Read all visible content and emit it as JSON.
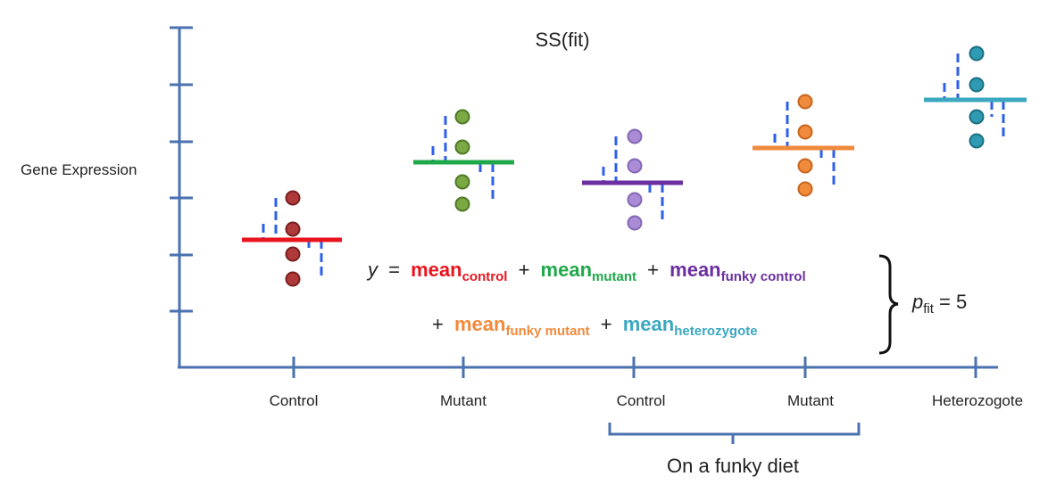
{
  "title": "SS(fit)",
  "y_axis_label": "Gene Expression",
  "categories": [
    "Control",
    "Mutant",
    "Control",
    "Mutant",
    "Heterozogote"
  ],
  "group_label": "On a funky diet",
  "equation": {
    "lhs": "y",
    "equals": "=",
    "plus": "+",
    "term_word": "mean",
    "terms": [
      {
        "sub": "control",
        "color": "#e8141e"
      },
      {
        "sub": "mutant",
        "color": "#1fa84a"
      },
      {
        "sub": "funky control",
        "color": "#6b2fa0"
      },
      {
        "sub": "funky mutant",
        "color": "#f08a3c"
      },
      {
        "sub": "heterozygote",
        "color": "#3ba7c0"
      }
    ]
  },
  "p_fit": {
    "p": "p",
    "sub": "fit",
    "rest": " = 5"
  },
  "groups": [
    {
      "name": "control",
      "mean_color": "#e8141e",
      "dot_fill": "#b03a3a",
      "dot_stroke": "#7a1f1f"
    },
    {
      "name": "mutant",
      "mean_color": "#1fa84a",
      "dot_fill": "#7aa842",
      "dot_stroke": "#4f7a26"
    },
    {
      "name": "funky control",
      "mean_color": "#6b2fa0",
      "dot_fill": "#a98bd6",
      "dot_stroke": "#8468b5"
    },
    {
      "name": "funky mutant",
      "mean_color": "#f08a3c",
      "dot_fill": "#f08a3c",
      "dot_stroke": "#c8651e"
    },
    {
      "name": "heterozygote",
      "mean_color": "#3ba7c0",
      "dot_fill": "#2e9bb3",
      "dot_stroke": "#1c6f82"
    }
  ],
  "colors": {
    "axis": "#4a72b0",
    "residual": "#2d5fe8"
  }
}
